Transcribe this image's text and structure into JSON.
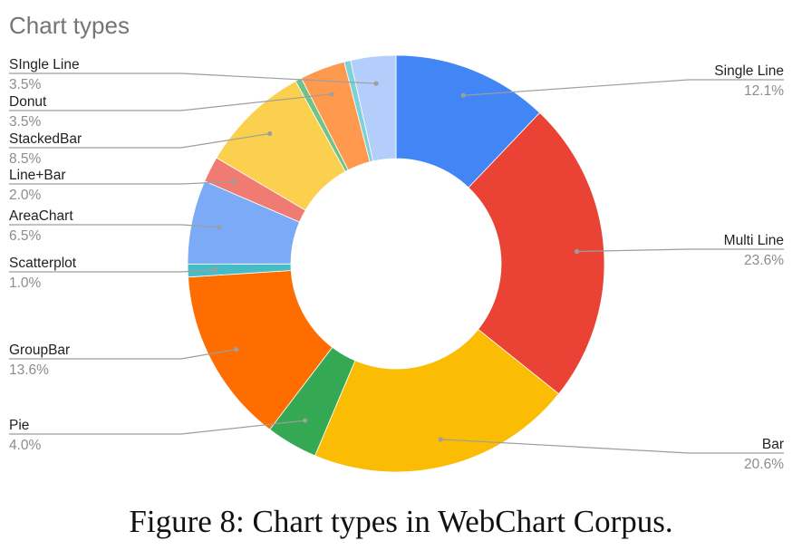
{
  "figure_caption": "Figure 8: Chart types in WebChart Corpus.",
  "chart_data": {
    "type": "pie",
    "style": "donut",
    "title": "Chart types",
    "legend": "labels-outside",
    "start_angle_deg": 0,
    "direction": "clockwise",
    "slices": [
      {
        "label": "Single Line",
        "percent_label": "12.1%",
        "value": 12.1,
        "color": "#4285f4",
        "side": "right"
      },
      {
        "label": "Multi Line",
        "percent_label": "23.6%",
        "value": 23.6,
        "color": "#ea4335",
        "side": "right"
      },
      {
        "label": "Bar",
        "percent_label": "20.6%",
        "value": 20.6,
        "color": "#fbbc04",
        "side": "right"
      },
      {
        "label": "Pie",
        "percent_label": "4.0%",
        "value": 4.0,
        "color": "#34a853",
        "side": "left"
      },
      {
        "label": "GroupBar",
        "percent_label": "13.6%",
        "value": 13.6,
        "color": "#ff6d01",
        "side": "left"
      },
      {
        "label": "Scatterplot",
        "percent_label": "1.0%",
        "value": 1.0,
        "color": "#46bdc6",
        "side": "left"
      },
      {
        "label": "AreaChart",
        "percent_label": "6.5%",
        "value": 6.5,
        "color": "#7baaf7",
        "side": "left"
      },
      {
        "label": "Line+Bar",
        "percent_label": "2.0%",
        "value": 2.0,
        "color": "#f07b72",
        "side": "left"
      },
      {
        "label": "StackedBar",
        "percent_label": "8.5%",
        "value": 8.5,
        "color": "#fcd04f",
        "side": "left"
      },
      {
        "label": "",
        "percent_label": "",
        "value": 0.5,
        "color": "#71c287",
        "side": "none"
      },
      {
        "label": "Donut",
        "percent_label": "3.5%",
        "value": 3.5,
        "color": "#ff994d",
        "side": "left"
      },
      {
        "label": "",
        "percent_label": "",
        "value": 0.5,
        "color": "#7ed1d7",
        "side": "none"
      },
      {
        "label": "SIngle Line",
        "percent_label": "3.5%",
        "value": 3.5,
        "color": "#b3cefb",
        "side": "left"
      }
    ]
  }
}
